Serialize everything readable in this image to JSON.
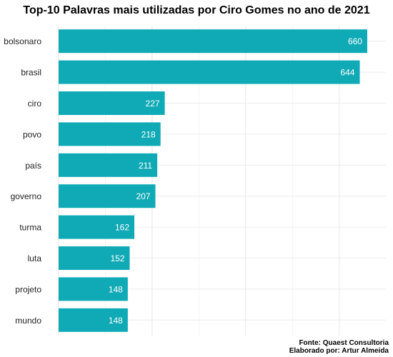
{
  "chart_data": {
    "type": "bar",
    "orientation": "horizontal",
    "title": "Top-10 Palavras mais utilizadas por Ciro Gomes no ano de 2021",
    "categories": [
      "bolsonaro",
      "brasil",
      "ciro",
      "povo",
      "país",
      "governo",
      "turma",
      "luta",
      "projeto",
      "mundo"
    ],
    "values": [
      660,
      644,
      227,
      218,
      211,
      207,
      162,
      152,
      148,
      148
    ],
    "value_labels": [
      "660",
      "644",
      "227",
      "218",
      "211",
      "207",
      "162",
      "152",
      "148",
      "148"
    ],
    "xlim": [
      0,
      700
    ],
    "grid": true,
    "bar_color": "#10AAB6",
    "caption": [
      "Fonte: Quaest Consultoria",
      "Elaborado por: Artur Almeida"
    ]
  }
}
